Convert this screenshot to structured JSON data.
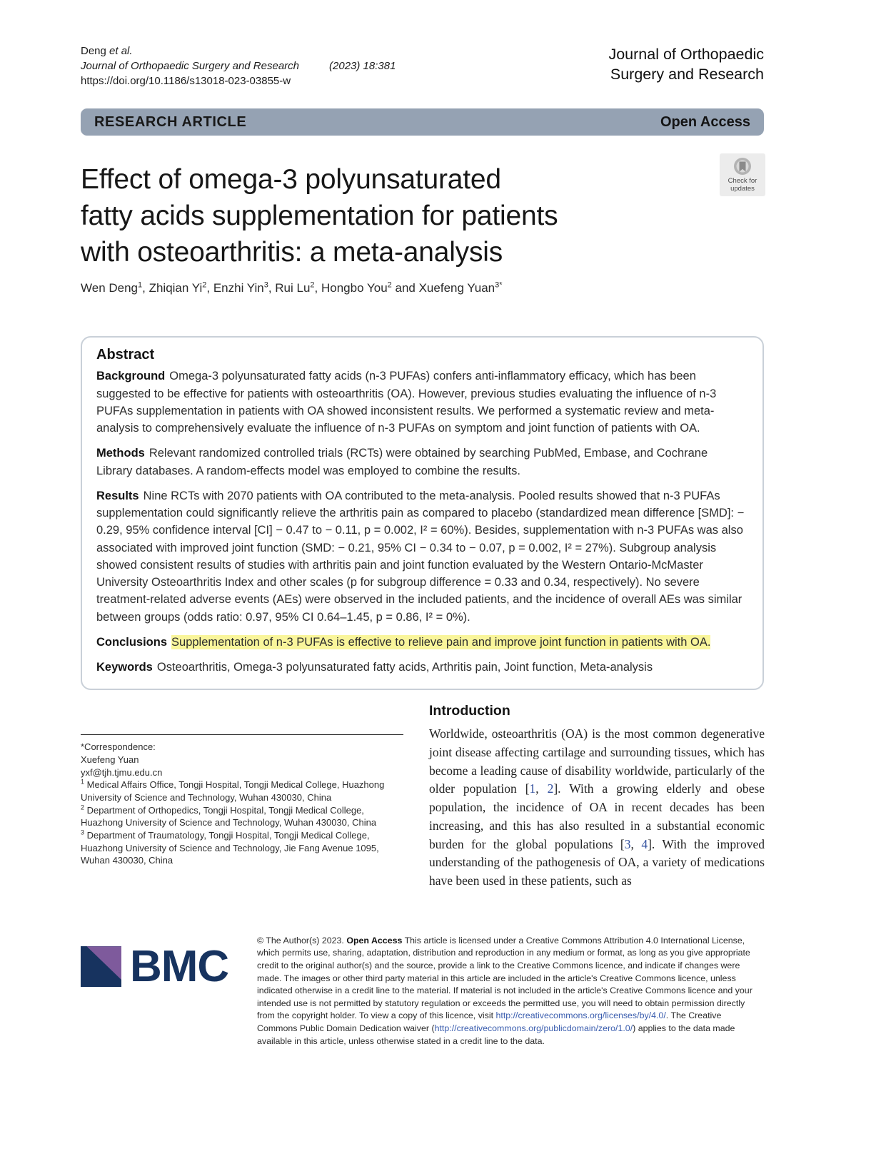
{
  "colors": {
    "banner_bg": "#95a2b3",
    "highlight_yellow": "#f9f59b",
    "citation_blue": "#33519f",
    "link_blue": "#3a5dae",
    "bmc_navy": "#17335f",
    "bmc_purple": "#7e5a9c"
  },
  "header": {
    "left_line1": [
      {
        "t": "Deng "
      },
      {
        "i": "et al."
      }
    ],
    "left_line2": [
      {
        "i": "Journal of Orthopaedic Surgery and Research"
      },
      {
        "gap": "(2023) 18:381"
      }
    ],
    "doi": "https://doi.org/10.1186/s13018-023-03855-w",
    "journal_right_line1": "Journal of Orthopaedic",
    "journal_right_line2": "Surgery and Research"
  },
  "banner": {
    "type_label": "RESEARCH ARTICLE",
    "access_label": "Open Access"
  },
  "check_updates": {
    "line1": "Check for",
    "line2": "updates"
  },
  "title_lines": [
    "Effect of omega-3 polyunsaturated",
    "fatty acids supplementation for patients",
    "with osteoarthritis: a meta-analysis"
  ],
  "authors_segments": [
    {
      "t": "Wen Deng"
    },
    {
      "sup": "1"
    },
    {
      "t": ", Zhiqian Yi"
    },
    {
      "sup": "2"
    },
    {
      "t": ", Enzhi Yin"
    },
    {
      "sup": "3"
    },
    {
      "t": ", Rui Lu"
    },
    {
      "sup": "2"
    },
    {
      "t": ", Hongbo You"
    },
    {
      "sup": "2"
    },
    {
      "t": " and Xuefeng Yuan"
    },
    {
      "sup": "3*"
    }
  ],
  "abstract": {
    "heading": "Abstract",
    "background": {
      "label": "Background",
      "text": "Omega-3 polyunsaturated fatty acids (n-3 PUFAs) confers anti-inflammatory efficacy, which has been suggested to be effective for patients with osteoarthritis (OA). However, previous studies evaluating the influence of n-3 PUFAs supplementation in patients with OA showed inconsistent results. We performed a systematic review and meta-analysis to comprehensively evaluate the influence of n-3 PUFAs on symptom and joint function of patients with OA."
    },
    "methods": {
      "label": "Methods",
      "text": "Relevant randomized controlled trials (RCTs) were obtained by searching PubMed, Embase, and Cochrane Library databases. A random-effects model was employed to combine the results."
    },
    "results": {
      "label": "Results",
      "text": "Nine RCTs with 2070 patients with OA contributed to the meta-analysis. Pooled results showed that n-3 PUFAs supplementation could significantly relieve the arthritis pain as compared to placebo (standardized mean difference [SMD]: − 0.29, 95% confidence interval [CI] − 0.47 to − 0.11, p = 0.002, I² = 60%). Besides, supplementation with n-3 PUFAs was also associated with improved joint function (SMD: − 0.21, 95% CI − 0.34 to − 0.07, p = 0.002, I² = 27%). Subgroup analysis showed consistent results of studies with arthritis pain and joint function evaluated by the Western Ontario-McMaster University Osteoarthritis Index and other scales (p for subgroup difference = 0.33 and 0.34, respectively). No severe treatment-related adverse events (AEs) were observed in the included patients, and the incidence of overall AEs was similar between groups (odds ratio: 0.97, 95% CI 0.64–1.45, p = 0.86, I² = 0%)."
    },
    "conclusions": {
      "label": "Conclusions",
      "text": "Supplementation of n-3 PUFAs is effective to relieve pain and improve joint function in patients with OA."
    },
    "keywords": {
      "label": "Keywords",
      "text": "Osteoarthritis, Omega-3 polyunsaturated fatty acids, Arthritis pain, Joint function, Meta-analysis"
    }
  },
  "left_column": {
    "correspondence_label": "*Correspondence:",
    "correspondence_name": "Xuefeng Yuan",
    "correspondence_email": "yxf@tjh.tjmu.edu.cn",
    "affiliations": [
      {
        "sup": "1",
        "text": " Medical Affairs Office, Tongji Hospital, Tongji Medical College, Huazhong University of Science and Technology, Wuhan 430030, China"
      },
      {
        "sup": "2",
        "text": " Department of Orthopedics, Tongji Hospital, Tongji Medical College, Huazhong University of Science and Technology, Wuhan 430030, China"
      },
      {
        "sup": "3",
        "text": " Department of Traumatology, Tongji Hospital, Tongji Medical College, Huazhong University of Science and Technology, Jie Fang Avenue 1095, Wuhan 430030, China"
      }
    ]
  },
  "introduction": {
    "heading": "Introduction",
    "paragraph_segments": [
      {
        "t": "Worldwide, osteoarthritis (OA) is the most common degenerative joint disease affecting cartilage and surrounding tissues, which has become a leading cause of disability worldwide, particularly of the older population ["
      },
      {
        "cite": "1"
      },
      {
        "t": ", "
      },
      {
        "cite": "2"
      },
      {
        "t": "]. With a growing elderly and obese population, the incidence of OA in recent decades has been increasing, and this has also resulted in a substantial economic burden for the global populations ["
      },
      {
        "cite": "3"
      },
      {
        "t": ", "
      },
      {
        "cite": "4"
      },
      {
        "t": "]. With the improved understanding of the pathogenesis of OA, a variety of medications have been used in these patients, such as"
      }
    ]
  },
  "footer": {
    "logo_text": "BMC",
    "license_segments": [
      {
        "t": "© The Author(s) 2023. "
      },
      {
        "b": "Open Access"
      },
      {
        "t": " This article is licensed under a Creative Commons Attribution 4.0 International License, which permits use, sharing, adaptation, distribution and reproduction in any medium or format, as long as you give appropriate credit to the original author(s) and the source, provide a link to the Creative Commons licence, and indicate if changes were made. The images or other third party material in this article are included in the article's Creative Commons licence, unless indicated otherwise in a credit line to the material. If material is not included in the article's Creative Commons licence and your intended use is not permitted by statutory regulation or exceeds the permitted use, you will need to obtain permission directly from the copyright holder. To view a copy of this licence, visit "
      },
      {
        "link": "http://creativecommons.org/licenses/by/4.0/"
      },
      {
        "t": ". The Creative Commons Public Domain Dedication waiver ("
      },
      {
        "link": "http://creativecommons.org/publicdomain/zero/1.0/"
      },
      {
        "t": ") applies to the data made available in this article, unless otherwise stated in a credit line to the data."
      }
    ]
  }
}
